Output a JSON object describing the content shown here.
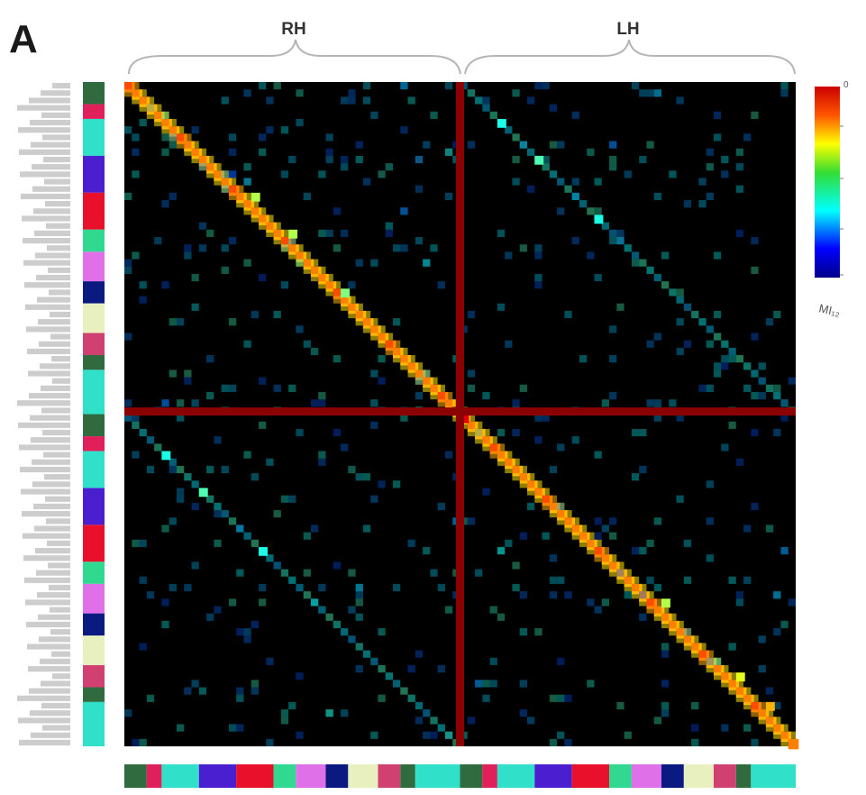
{
  "figure": {
    "panel_letter": "A",
    "colorbar_unit": "MI₁₂",
    "colorbar_ticks": [
      "0",
      "",
      "",
      "",
      "",
      ""
    ]
  },
  "chart_data": {
    "type": "heatmap",
    "title": "",
    "row_groups": [
      "RH",
      "LH"
    ],
    "col_groups": [
      "RH",
      "LH"
    ],
    "n_regions_per_hemisphere": 45,
    "region_labels": [],
    "colormap": "jet",
    "background_color": "#000000",
    "divider_color": "#8b0000",
    "network_colors": [
      "#2f6b3f",
      "#e0205a",
      "#1f2fbf",
      "#30e0c8",
      "#4a1fd0",
      "#e8102a",
      "#30d890",
      "#e070e8",
      "#0a1a80",
      "#e8f0c0",
      "#d04070"
    ],
    "network_blocks": [
      {
        "network": 0,
        "count": 3
      },
      {
        "network": 1,
        "count": 2
      },
      {
        "network": 3,
        "count": 5
      },
      {
        "network": 4,
        "count": 5
      },
      {
        "network": 5,
        "count": 5
      },
      {
        "network": 6,
        "count": 3
      },
      {
        "network": 7,
        "count": 4
      },
      {
        "network": 8,
        "count": 3
      },
      {
        "network": 9,
        "count": 4
      },
      {
        "network": 10,
        "count": 3
      },
      {
        "network": 0,
        "count": 2
      },
      {
        "network": 3,
        "count": 6
      }
    ],
    "diagonal_value": 0.75,
    "background_value": 0.05,
    "notes_cells": [
      {
        "row": 15,
        "col": 17,
        "value": 0.55
      },
      {
        "row": 20,
        "col": 22,
        "value": 0.55
      },
      {
        "row": 28,
        "col": 29,
        "value": 0.5
      },
      {
        "row": 44,
        "col": 44,
        "value": 0.95
      },
      {
        "row": 45,
        "col": 45,
        "value": 0.9
      },
      {
        "row": 5,
        "col": 50,
        "value": 0.4
      },
      {
        "row": 10,
        "col": 55,
        "value": 0.45
      },
      {
        "row": 18,
        "col": 63,
        "value": 0.4
      },
      {
        "row": 50,
        "col": 5,
        "value": 0.4
      },
      {
        "row": 55,
        "col": 10,
        "value": 0.45
      },
      {
        "row": 63,
        "col": 18,
        "value": 0.4
      },
      {
        "row": 70,
        "col": 72,
        "value": 0.55
      },
      {
        "row": 80,
        "col": 82,
        "value": 0.6
      },
      {
        "row": 84,
        "col": 86,
        "value": 0.7
      }
    ]
  }
}
